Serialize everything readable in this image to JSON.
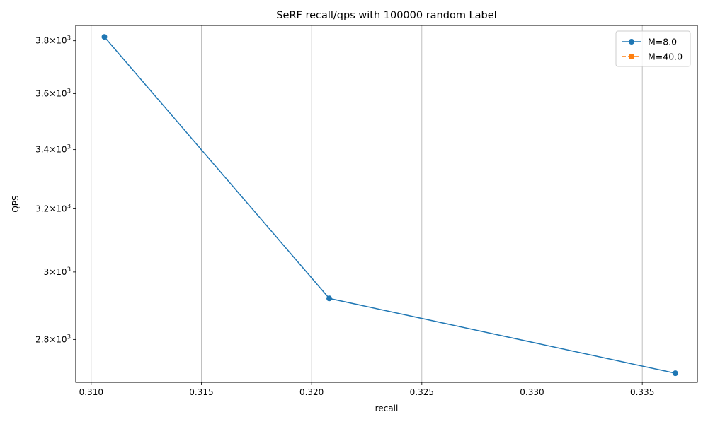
{
  "chart_data": {
    "type": "line",
    "title": "SeRF recall/qps with 100000 random Label",
    "xlabel": "recall",
    "ylabel": "QPS",
    "x_scale": "linear",
    "y_scale": "log",
    "xlim": [
      0.3093,
      0.3375
    ],
    "ylim": [
      2680,
      3860
    ],
    "grid": "x",
    "legend_position": "top-right",
    "x_ticks": [
      {
        "value": 0.31,
        "label": "0.310"
      },
      {
        "value": 0.315,
        "label": "0.315"
      },
      {
        "value": 0.32,
        "label": "0.320"
      },
      {
        "value": 0.325,
        "label": "0.325"
      },
      {
        "value": 0.33,
        "label": "0.330"
      },
      {
        "value": 0.335,
        "label": "0.335"
      }
    ],
    "y_ticks": [
      {
        "value": 2800,
        "label": "2.8",
        "mantissa": "2.8",
        "times": "×",
        "base": "10",
        "exp": "3"
      },
      {
        "value": 3000,
        "label": "3",
        "mantissa": "3",
        "times": "×",
        "base": "10",
        "exp": "3"
      },
      {
        "value": 3200,
        "label": "3.2",
        "mantissa": "3.2",
        "times": "×",
        "base": "10",
        "exp": "3"
      },
      {
        "value": 3400,
        "label": "3.4",
        "mantissa": "3.4",
        "times": "×",
        "base": "10",
        "exp": "3"
      },
      {
        "value": 3600,
        "label": "3.6",
        "mantissa": "3.6",
        "times": "×",
        "base": "10",
        "exp": "3"
      },
      {
        "value": 3800,
        "label": "3.8",
        "mantissa": "3.8",
        "times": "×",
        "base": "10",
        "exp": "3"
      }
    ],
    "series": [
      {
        "name": "M=8.0",
        "color": "#1f77b4",
        "marker": "circle",
        "line_style": "solid",
        "x": [
          0.3106,
          0.3208,
          0.3365
        ],
        "y": [
          3815,
          2920,
          2705
        ]
      },
      {
        "name": "M=40.0",
        "color": "#ff7f0e",
        "marker": "square",
        "line_style": "dashed",
        "x": [],
        "y": []
      }
    ]
  }
}
